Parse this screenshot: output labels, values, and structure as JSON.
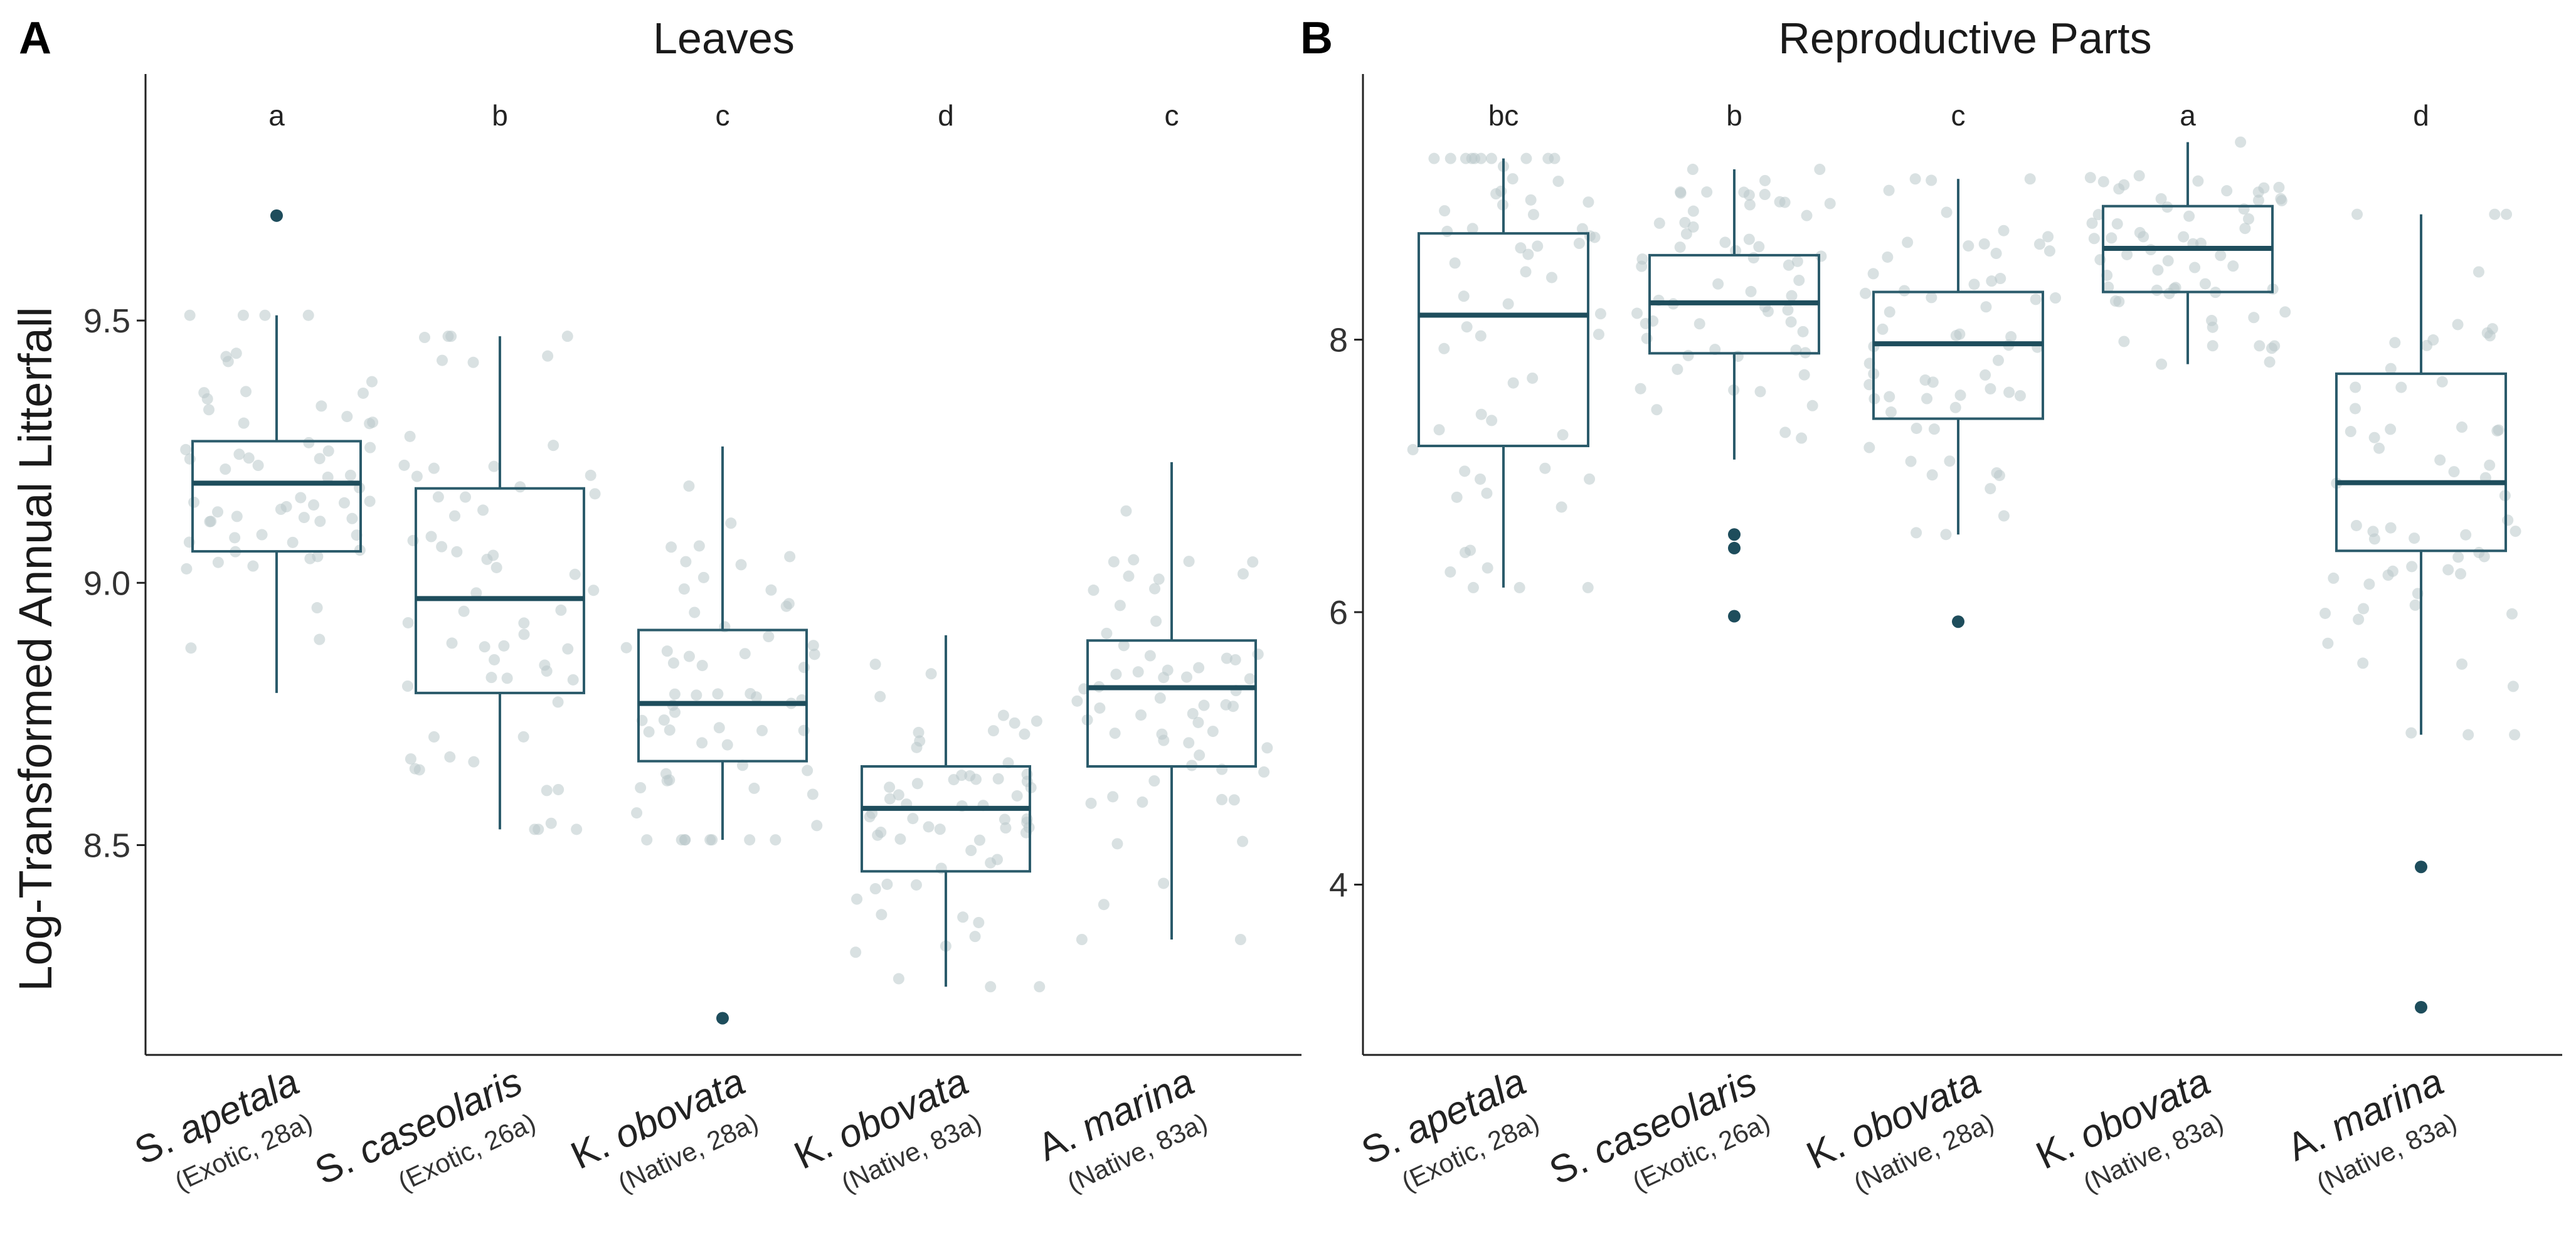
{
  "colors": {
    "box": "#2b5b6b",
    "median": "#1e4d5c",
    "whisker": "#2b5b6b",
    "jitter": "#b9c9cb",
    "outlier": "#1e4d5c"
  },
  "ylabel": "Log-Transformed Annual Litterfall",
  "chart_data": [
    {
      "type": "box",
      "panel_label": "A",
      "title": "Leaves",
      "ylabel": "Log-Transformed Annual Litterfall",
      "ylim": [
        8.1,
        9.97
      ],
      "yticks": [
        8.5,
        9.0,
        9.5
      ],
      "ytick_labels": [
        "8.5",
        "9.0",
        "9.5"
      ],
      "categories": [
        {
          "name": "S. apetala",
          "species_genus": "S.",
          "species_epithet": "apetala",
          "subtitle": "(Exotic, 28a)"
        },
        {
          "name": "S. caseolaris",
          "species_genus": "S.",
          "species_epithet": "caseolaris",
          "subtitle": "(Exotic, 26a)"
        },
        {
          "name": "K. obovata",
          "species_genus": "K.",
          "species_epithet": "obovata",
          "subtitle": "(Native, 28a)"
        },
        {
          "name": "K. obovata",
          "species_genus": "K.",
          "species_epithet": "obovata",
          "subtitle": "(Native, 83a)"
        },
        {
          "name": "A. marina",
          "species_genus": "A.",
          "species_epithet": "marina",
          "subtitle": "(Native, 83a)"
        }
      ],
      "groups": [
        {
          "sig": "a",
          "whisker_low": 8.79,
          "q1": 9.06,
          "median": 9.19,
          "q3": 9.27,
          "whisker_high": 9.51,
          "outliers": [
            9.7
          ]
        },
        {
          "sig": "b",
          "whisker_low": 8.53,
          "q1": 8.79,
          "median": 8.97,
          "q3": 9.18,
          "whisker_high": 9.47,
          "outliers": []
        },
        {
          "sig": "c",
          "whisker_low": 8.51,
          "q1": 8.66,
          "median": 8.77,
          "q3": 8.91,
          "whisker_high": 9.26,
          "outliers": [
            8.17
          ]
        },
        {
          "sig": "d",
          "whisker_low": 8.23,
          "q1": 8.45,
          "median": 8.57,
          "q3": 8.65,
          "whisker_high": 8.9,
          "outliers": []
        },
        {
          "sig": "c",
          "whisker_low": 8.32,
          "q1": 8.65,
          "median": 8.8,
          "q3": 8.89,
          "whisker_high": 9.23,
          "outliers": []
        }
      ]
    },
    {
      "type": "box",
      "panel_label": "B",
      "title": "Reproductive Parts",
      "ylabel": "",
      "ylim": [
        2.75,
        9.95
      ],
      "yticks": [
        4,
        6,
        8
      ],
      "ytick_labels": [
        "4",
        "6",
        "8"
      ],
      "categories": [
        {
          "name": "S. apetala",
          "species_genus": "S.",
          "species_epithet": "apetala",
          "subtitle": "(Exotic, 28a)"
        },
        {
          "name": "S. caseolaris",
          "species_genus": "S.",
          "species_epithet": "caseolaris",
          "subtitle": "(Exotic, 26a)"
        },
        {
          "name": "K. obovata",
          "species_genus": "K.",
          "species_epithet": "obovata",
          "subtitle": "(Native, 28a)"
        },
        {
          "name": "K. obovata",
          "species_genus": "K.",
          "species_epithet": "obovata",
          "subtitle": "(Native, 83a)"
        },
        {
          "name": "A. marina",
          "species_genus": "A.",
          "species_epithet": "marina",
          "subtitle": "(Native, 83a)"
        }
      ],
      "groups": [
        {
          "sig": "bc",
          "whisker_low": 6.18,
          "q1": 7.22,
          "median": 8.18,
          "q3": 8.78,
          "whisker_high": 9.33,
          "outliers": []
        },
        {
          "sig": "b",
          "whisker_low": 7.12,
          "q1": 7.9,
          "median": 8.27,
          "q3": 8.62,
          "whisker_high": 9.25,
          "outliers": [
            6.57,
            6.47,
            5.97
          ]
        },
        {
          "sig": "c",
          "whisker_low": 6.57,
          "q1": 7.42,
          "median": 7.97,
          "q3": 8.35,
          "whisker_high": 9.18,
          "outliers": [
            5.93
          ]
        },
        {
          "sig": "a",
          "whisker_low": 7.82,
          "q1": 8.35,
          "median": 8.67,
          "q3": 8.98,
          "whisker_high": 9.45,
          "outliers": []
        },
        {
          "sig": "d",
          "whisker_low": 5.1,
          "q1": 6.45,
          "median": 6.95,
          "q3": 7.75,
          "whisker_high": 8.92,
          "outliers": [
            4.13,
            3.1
          ]
        }
      ]
    }
  ]
}
